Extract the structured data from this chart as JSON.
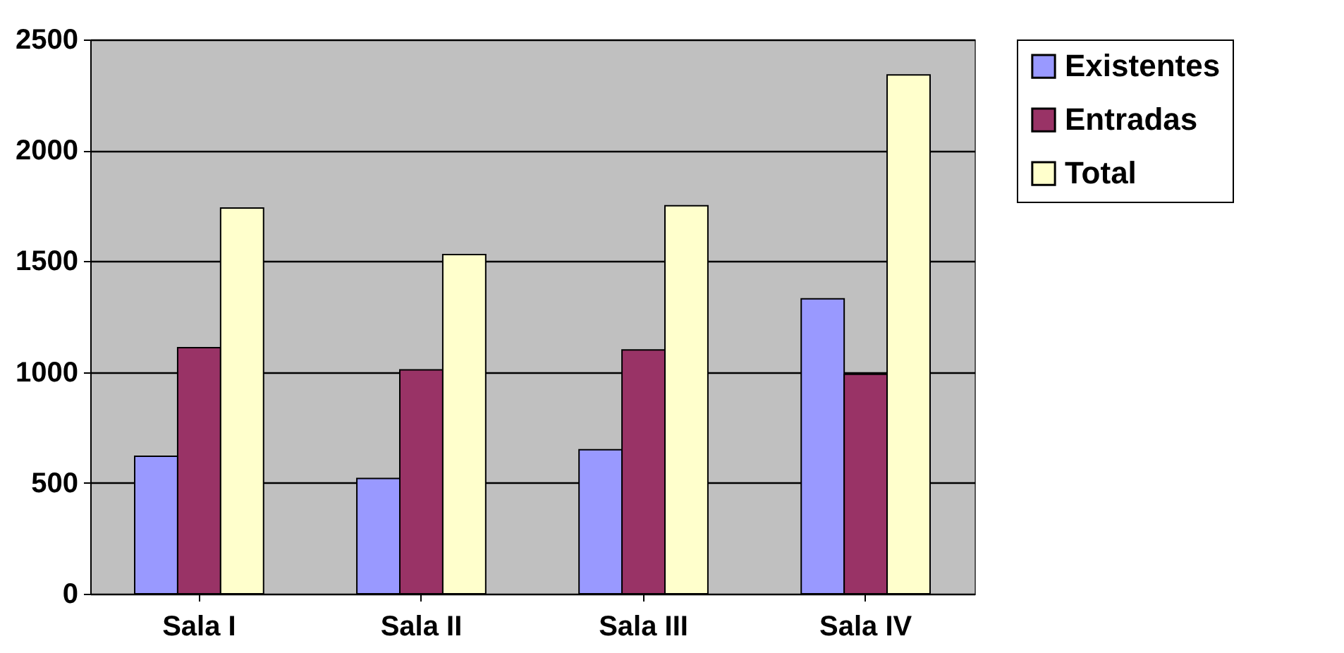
{
  "chart_data": {
    "type": "bar",
    "categories": [
      "Sala I",
      "Sala II",
      "Sala III",
      "Sala IV"
    ],
    "series": [
      {
        "name": "Existentes",
        "color": "#9999ff",
        "values": [
          620,
          520,
          650,
          1330
        ]
      },
      {
        "name": "Entradas",
        "color": "#993366",
        "values": [
          1110,
          1010,
          1100,
          990
        ]
      },
      {
        "name": "Total",
        "color": "#ffffcc",
        "values": [
          1740,
          1530,
          1750,
          2340
        ]
      }
    ],
    "ylim": [
      0,
      2500
    ],
    "yticks": [
      0,
      500,
      1000,
      1500,
      2000,
      2500
    ],
    "grid": "y",
    "legend": "right"
  }
}
